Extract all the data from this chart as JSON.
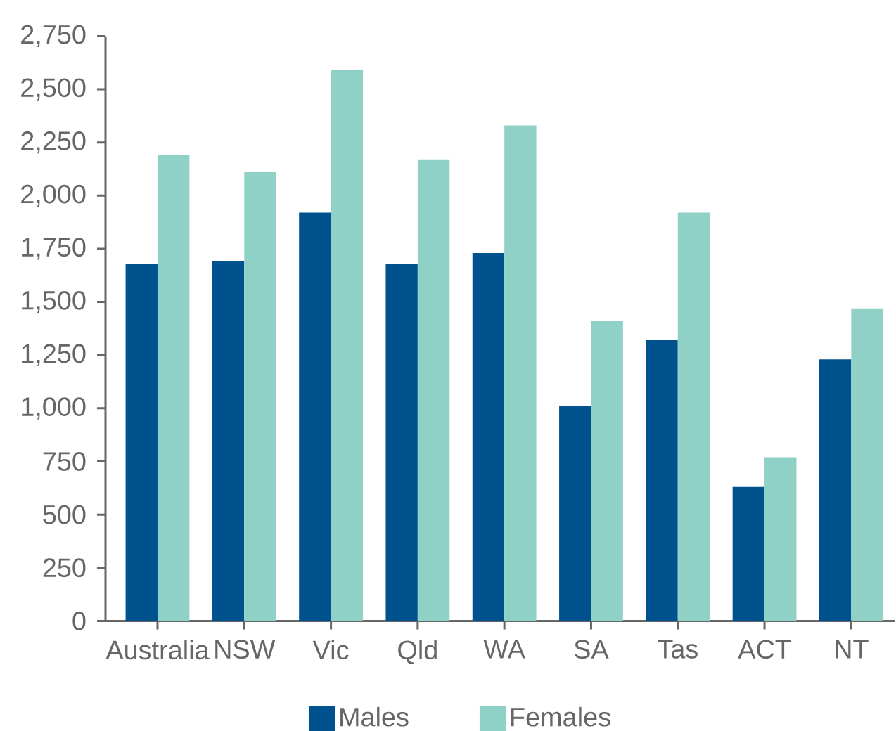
{
  "chart_data": {
    "type": "bar",
    "categories": [
      "Australia",
      "NSW",
      "Vic",
      "Qld",
      "WA",
      "SA",
      "Tas",
      "ACT",
      "NT"
    ],
    "series": [
      {
        "name": "Males",
        "color": "#00528f",
        "values": [
          1680,
          1690,
          1920,
          1680,
          1730,
          1010,
          1320,
          630,
          1230
        ]
      },
      {
        "name": "Females",
        "color": "#8fd1c6",
        "values": [
          2190,
          2110,
          2590,
          2170,
          2330,
          1410,
          1920,
          770,
          1470
        ]
      }
    ],
    "ylim": [
      0,
      2750
    ],
    "yticks": [
      0,
      250,
      500,
      750,
      {
        "value": 1000,
        "label": "1,000"
      },
      {
        "value": 1250,
        "label": "1,250"
      },
      {
        "value": 1500,
        "label": "1,500"
      },
      {
        "value": 1750,
        "label": "1,750"
      },
      {
        "value": 2000,
        "label": "2,000"
      },
      {
        "value": 2250,
        "label": "2,250"
      },
      {
        "value": 2500,
        "label": "2,500"
      },
      {
        "value": 2750,
        "label": "2,750"
      }
    ],
    "legend": "bottom"
  }
}
